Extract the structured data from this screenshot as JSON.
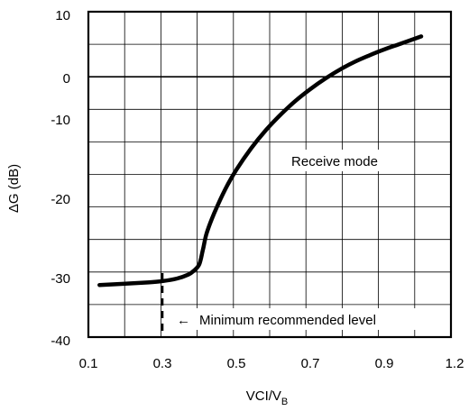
{
  "chart_data": {
    "type": "line",
    "xlabel": "VCI/V",
    "xlabel_subscript": "B",
    "ylabel": "ΔG (dB)",
    "xlim": [
      0.1,
      1.2
    ],
    "ylim": [
      -40,
      10
    ],
    "x_ticks": [
      0.1,
      0.3,
      0.5,
      0.7,
      0.9,
      1.2
    ],
    "x_tick_labels": [
      "0.1",
      "0.3",
      "0.5",
      "0.7",
      "0.9",
      "1.2"
    ],
    "y_ticks": [
      10,
      0,
      -10,
      -20,
      -30,
      -40
    ],
    "y_tick_labels": [
      "10",
      "0",
      "-10",
      "-20",
      "-30",
      "-40"
    ],
    "grid": true,
    "reference_line_y": 0,
    "series": [
      {
        "x": [
          0.13,
          0.2,
          0.26,
          0.3,
          0.34,
          0.37,
          0.385,
          0.4,
          0.41,
          0.42,
          0.44,
          0.47,
          0.5,
          0.54,
          0.58,
          0.62,
          0.66,
          0.7,
          0.74,
          0.78,
          0.82,
          0.86,
          0.9,
          0.94,
          1.0
        ],
        "y": [
          -32.0,
          -31.8,
          -31.6,
          -31.4,
          -31.0,
          -30.4,
          -29.8,
          -28.8,
          -26.5,
          -24.0,
          -21.0,
          -17.3,
          -14.3,
          -11.0,
          -8.2,
          -5.8,
          -3.7,
          -1.9,
          -0.3,
          1.1,
          2.3,
          3.3,
          4.2,
          5.0,
          6.2
        ]
      }
    ],
    "annotations": [
      {
        "text": "Receive mode",
        "x": 0.65,
        "y": -17.5
      },
      {
        "text": "Minimum recommended level",
        "arrow": "←",
        "x": 0.3,
        "y": -36.5
      }
    ],
    "marker_line": {
      "x": 0.3,
      "y_from": -30,
      "y_to": -40,
      "style": "dashed"
    }
  }
}
